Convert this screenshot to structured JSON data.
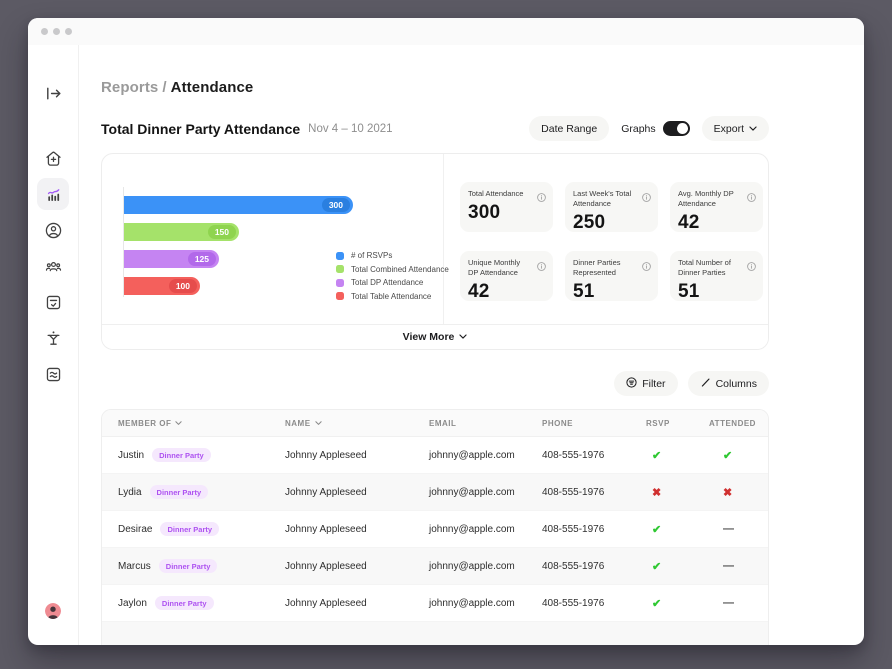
{
  "breadcrumb": {
    "section": "Reports",
    "divider": "/",
    "current": "Attendance"
  },
  "toolbar": {
    "title": "Total Dinner Party Attendance",
    "date_range_text": "Nov 4 – 10 2021",
    "date_range_button": "Date Range",
    "graphs_label": "Graphs",
    "graphs_on": true,
    "export_label": "Export"
  },
  "chart_data": {
    "type": "bar",
    "orientation": "horizontal",
    "categories": [
      "# of RSVPs",
      "Total Combined Attendance",
      "Total DP Attendance",
      "Total Table Attendance"
    ],
    "values": [
      300,
      150,
      125,
      100
    ],
    "colors": [
      "#3b92f7",
      "#a5e26a",
      "#c584f2",
      "#f4605c"
    ],
    "pill_colors": [
      "#2a7fe0",
      "#8fd44f",
      "#b269ea",
      "#e64c4c"
    ],
    "xmax": 300,
    "value_labels": true,
    "legend_position": "right",
    "title": "Total Dinner Party Attendance"
  },
  "stats": [
    {
      "label": "Total Attendance",
      "value": "300"
    },
    {
      "label": "Last Week's Total Attendance",
      "value": "250"
    },
    {
      "label": "Avg. Monthly DP Attendance",
      "value": "42"
    },
    {
      "label": "Unique Monthly DP Attendance",
      "value": "42"
    },
    {
      "label": "Dinner Parties Represented",
      "value": "51"
    },
    {
      "label": "Total Number of Dinner Parties",
      "value": "51"
    }
  ],
  "view_more_label": "View More",
  "table_controls": {
    "filter_label": "Filter",
    "columns_label": "Columns"
  },
  "table": {
    "headers": [
      {
        "label": "MEMBER OF",
        "sortable": true
      },
      {
        "label": "NAME",
        "sortable": true
      },
      {
        "label": "EMAIL",
        "sortable": false
      },
      {
        "label": "PHONE",
        "sortable": false
      },
      {
        "label": "RSVP",
        "sortable": false
      },
      {
        "label": "ATTENDED",
        "sortable": false
      }
    ],
    "rows": [
      {
        "member": "Justin",
        "badge": "Dinner Party",
        "name": "Johnny Appleseed",
        "email": "johnny@apple.com",
        "phone": "408-555-1976",
        "rsvp": "yes",
        "attended": "yes"
      },
      {
        "member": "Lydia",
        "badge": "Dinner Party",
        "name": "Johnny Appleseed",
        "email": "johnny@apple.com",
        "phone": "408-555-1976",
        "rsvp": "no",
        "attended": "no"
      },
      {
        "member": "Desirae",
        "badge": "Dinner Party",
        "name": "Johnny Appleseed",
        "email": "johnny@apple.com",
        "phone": "408-555-1976",
        "rsvp": "yes",
        "attended": "none"
      },
      {
        "member": "Marcus",
        "badge": "Dinner Party",
        "name": "Johnny Appleseed",
        "email": "johnny@apple.com",
        "phone": "408-555-1976",
        "rsvp": "yes",
        "attended": "none"
      },
      {
        "member": "Jaylon",
        "badge": "Dinner Party",
        "name": "Johnny Appleseed",
        "email": "johnny@apple.com",
        "phone": "408-555-1976",
        "rsvp": "yes",
        "attended": "none"
      }
    ]
  }
}
